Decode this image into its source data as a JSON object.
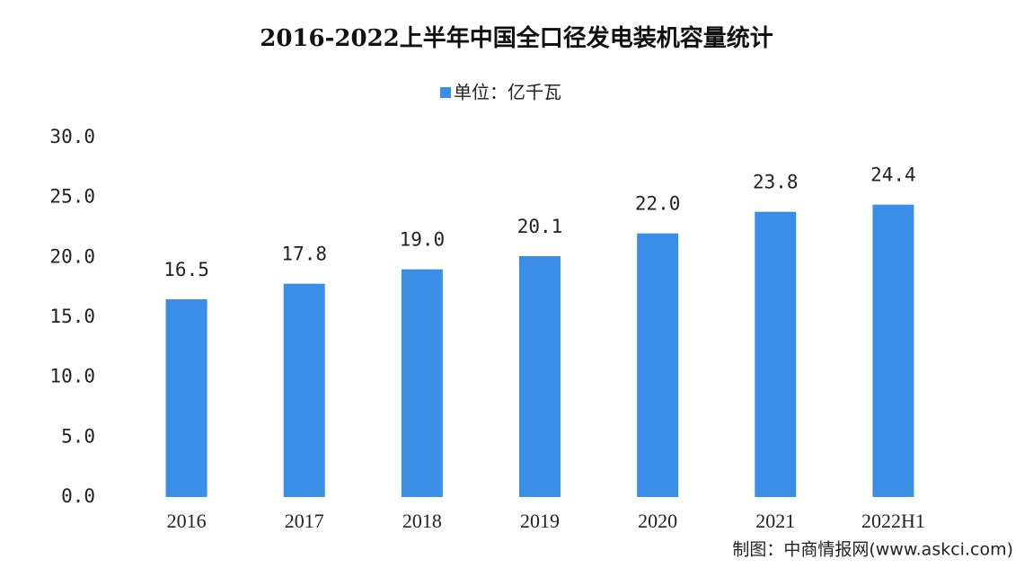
{
  "chart_data": {
    "type": "bar",
    "title": "2016-2022上半年中国全口径发电装机容量统计",
    "categories": [
      "2016",
      "2017",
      "2018",
      "2019",
      "2020",
      "2021",
      "2022H1"
    ],
    "series": [
      {
        "name": "单位：亿千瓦",
        "color": "#3a8ee6",
        "values": [
          16.5,
          17.8,
          19.0,
          20.1,
          22.0,
          23.8,
          24.4
        ],
        "value_labels": [
          "16.5",
          "17.8",
          "19.0",
          "20.1",
          "22.0",
          "23.8",
          "24.4"
        ]
      }
    ],
    "ylim": [
      0,
      30
    ],
    "yticks": [
      {
        "value": 0,
        "label": "0.0"
      },
      {
        "value": 5,
        "label": "5.0"
      },
      {
        "value": 10,
        "label": "10.0"
      },
      {
        "value": 15,
        "label": "15.0"
      },
      {
        "value": 20,
        "label": "20.0"
      },
      {
        "value": 25,
        "label": "25.0"
      },
      {
        "value": 30,
        "label": "30.0"
      }
    ],
    "grid": false,
    "legend": "top",
    "source": "制图：中商情报网(www.askci.com)"
  }
}
